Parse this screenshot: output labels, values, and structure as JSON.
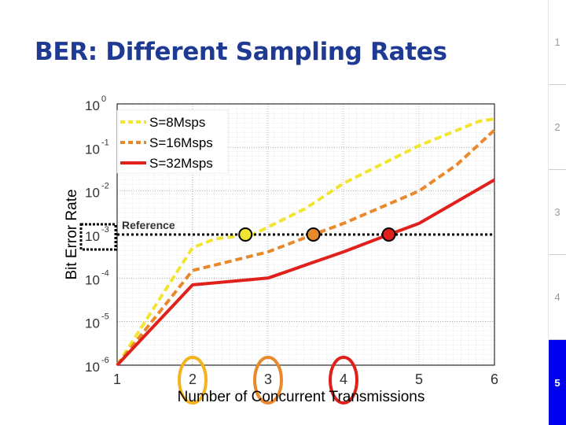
{
  "slide": {
    "title": "BER: Different Sampling Rates",
    "tabs": [
      {
        "label": "1",
        "active": false
      },
      {
        "label": "2",
        "active": false
      },
      {
        "label": "3",
        "active": false
      },
      {
        "label": "4",
        "active": false
      },
      {
        "label": "5",
        "active": true
      }
    ],
    "accent_color": "#1f3a93",
    "active_tab_color": "#0000ee"
  },
  "chart_data": {
    "type": "line",
    "title": "",
    "xlabel": "Number of Concurrent Transmissions",
    "ylabel": "Bit Error Rate",
    "xlim": [
      1,
      6
    ],
    "ylim_exponent": [
      -6,
      0
    ],
    "yscale": "log",
    "grid": true,
    "x_ticks": [
      "1",
      "2",
      "3",
      "4",
      "5",
      "6"
    ],
    "y_ticks": [
      {
        "base": "10",
        "exp": "0"
      },
      {
        "base": "10",
        "exp": "-1"
      },
      {
        "base": "10",
        "exp": "-2"
      },
      {
        "base": "10",
        "exp": "-3"
      },
      {
        "base": "10",
        "exp": "-4"
      },
      {
        "base": "10",
        "exp": "-5"
      },
      {
        "base": "10",
        "exp": "-6"
      }
    ],
    "legend_position": "top-left",
    "series": [
      {
        "name": "S=8Msps",
        "color": "#f2e531",
        "style": "dashed",
        "points": [
          [
            1,
            1e-06
          ],
          [
            2,
            0.0005
          ],
          [
            2.3,
            0.0008
          ],
          [
            2.8,
            0.001
          ],
          [
            3.5,
            0.004
          ],
          [
            4,
            0.015
          ],
          [
            5,
            0.11
          ],
          [
            5.8,
            0.4
          ],
          [
            6,
            0.45
          ]
        ]
      },
      {
        "name": "S=16Msps",
        "color": "#e8892c",
        "style": "dashed",
        "points": [
          [
            1,
            1e-06
          ],
          [
            2,
            0.00015
          ],
          [
            2.3,
            0.0002
          ],
          [
            3,
            0.0004
          ],
          [
            3.6,
            0.001
          ],
          [
            4,
            0.0018
          ],
          [
            5,
            0.01
          ],
          [
            5.5,
            0.04
          ],
          [
            6,
            0.25
          ]
        ]
      },
      {
        "name": "S=32Msps",
        "color": "#e0201b",
        "style": "solid",
        "points": [
          [
            1,
            1e-06
          ],
          [
            2,
            7e-05
          ],
          [
            3,
            0.0001
          ],
          [
            4,
            0.0004
          ],
          [
            4.6,
            0.001
          ],
          [
            5,
            0.0018
          ],
          [
            6,
            0.018
          ]
        ]
      }
    ],
    "reference": {
      "label": "Reference",
      "value": 0.001,
      "style": "dotted",
      "color": "#000000"
    },
    "threshold_markers": [
      {
        "x": 2.7,
        "y": 0.001,
        "color": "#f2e531"
      },
      {
        "x": 3.6,
        "y": 0.001,
        "color": "#e8892c"
      },
      {
        "x": 4.6,
        "y": 0.001,
        "color": "#e0201b"
      }
    ],
    "circled_ticks": [
      {
        "x": 2,
        "color": "#f2b31c"
      },
      {
        "x": 3,
        "color": "#e8892c"
      },
      {
        "x": 4,
        "color": "#e0201b"
      }
    ]
  }
}
